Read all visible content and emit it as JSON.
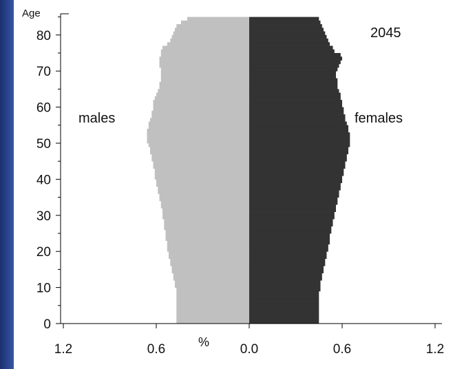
{
  "chart_data": {
    "type": "bar",
    "title": "2045",
    "xlabel": "%",
    "ylabel": "Age",
    "x_ticks": [
      "1.2",
      "0.6",
      "0.0",
      "0.6",
      "1.2"
    ],
    "y_ticks": [
      "0",
      "10",
      "20",
      "30",
      "40",
      "50",
      "60",
      "70",
      "80"
    ],
    "xlim": [
      -1.2,
      1.2
    ],
    "ylim": [
      0,
      85
    ],
    "series": [
      {
        "name": "males",
        "color": "#c0c0c0",
        "values": [
          0.47,
          0.47,
          0.47,
          0.47,
          0.47,
          0.47,
          0.47,
          0.47,
          0.47,
          0.47,
          0.48,
          0.48,
          0.49,
          0.49,
          0.5,
          0.5,
          0.51,
          0.51,
          0.52,
          0.52,
          0.53,
          0.53,
          0.53,
          0.54,
          0.54,
          0.54,
          0.55,
          0.55,
          0.55,
          0.56,
          0.56,
          0.56,
          0.57,
          0.57,
          0.58,
          0.58,
          0.59,
          0.59,
          0.6,
          0.6,
          0.61,
          0.61,
          0.61,
          0.62,
          0.62,
          0.63,
          0.63,
          0.64,
          0.64,
          0.65,
          0.66,
          0.66,
          0.66,
          0.66,
          0.65,
          0.65,
          0.64,
          0.63,
          0.63,
          0.62,
          0.62,
          0.62,
          0.61,
          0.6,
          0.59,
          0.58,
          0.58,
          0.57,
          0.57,
          0.57,
          0.57,
          0.58,
          0.58,
          0.58,
          0.57,
          0.57,
          0.56,
          0.53,
          0.51,
          0.5,
          0.49,
          0.48,
          0.47,
          0.44,
          0.4
        ]
      },
      {
        "name": "females",
        "color": "#333333",
        "values": [
          0.45,
          0.45,
          0.45,
          0.45,
          0.45,
          0.45,
          0.45,
          0.45,
          0.45,
          0.46,
          0.46,
          0.46,
          0.47,
          0.47,
          0.48,
          0.48,
          0.49,
          0.49,
          0.5,
          0.5,
          0.51,
          0.51,
          0.52,
          0.52,
          0.52,
          0.53,
          0.53,
          0.54,
          0.54,
          0.55,
          0.55,
          0.56,
          0.56,
          0.57,
          0.57,
          0.58,
          0.58,
          0.59,
          0.59,
          0.6,
          0.6,
          0.61,
          0.61,
          0.62,
          0.62,
          0.63,
          0.63,
          0.64,
          0.64,
          0.65,
          0.65,
          0.65,
          0.65,
          0.64,
          0.64,
          0.63,
          0.62,
          0.62,
          0.61,
          0.61,
          0.6,
          0.6,
          0.59,
          0.59,
          0.58,
          0.57,
          0.57,
          0.57,
          0.56,
          0.56,
          0.57,
          0.58,
          0.59,
          0.6,
          0.59,
          0.55,
          0.54,
          0.52,
          0.51,
          0.5,
          0.49,
          0.48,
          0.47,
          0.46,
          0.45
        ]
      }
    ],
    "annotations": {
      "year": "2045",
      "males_label": "males",
      "females_label": "females"
    },
    "grid": false
  }
}
